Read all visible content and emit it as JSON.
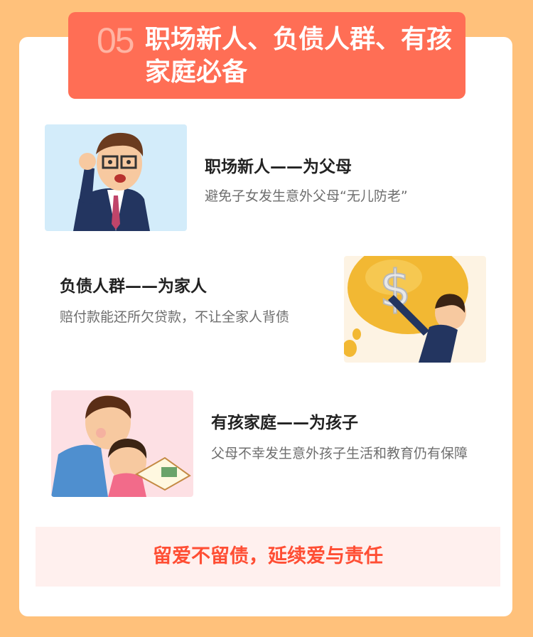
{
  "banner": {
    "number": "05",
    "title": "职场新人、负债人群、有孩家庭必备"
  },
  "sections": [
    {
      "heading": "职场新人——为父母",
      "desc": "避免子女发生意外父母“无儿防老”",
      "illustration": "office-worker-icon"
    },
    {
      "heading": "负债人群——为家人",
      "desc": "赔付款能还所欠贷款，不让全家人背债",
      "illustration": "debt-bag-icon"
    },
    {
      "heading": "有孩家庭——为孩子",
      "desc": "父母不幸发生意外孩子生活和教育仍有保障",
      "illustration": "family-reading-icon"
    }
  ],
  "footer": {
    "slogan": "留爱不留债，延续爱与责任"
  },
  "colors": {
    "page_bg": "#ffc17b",
    "banner_bg": "#ff6e55",
    "accent_text": "#ff4e34",
    "footer_bg": "#fff0ee"
  }
}
